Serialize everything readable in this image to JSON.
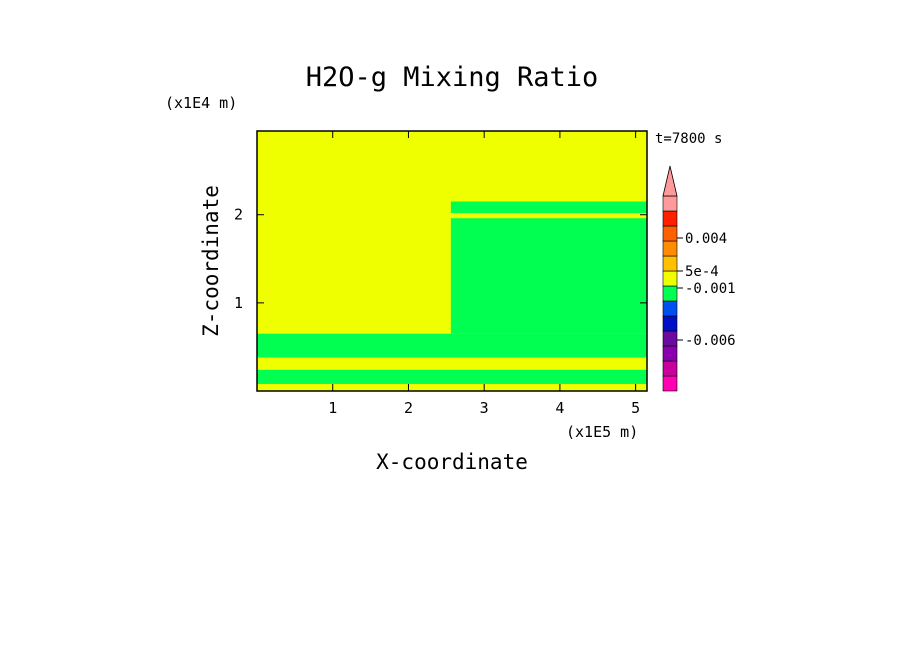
{
  "chart_data": {
    "type": "heatmap",
    "title": "H2O-g Mixing Ratio",
    "xlabel": "X-coordinate",
    "ylabel": "Z-coordinate",
    "x_scale_label": "(x1E5 m)",
    "y_scale_label": "(x1E4 m)",
    "time_label": "t=7800 s",
    "xlim": [
      0,
      5.15
    ],
    "ylim": [
      0,
      2.95
    ],
    "x_ticks": [
      1,
      2,
      3,
      4,
      5
    ],
    "y_ticks": [
      1,
      2
    ],
    "x_tick_labels": [
      "1",
      "2",
      "3",
      "4",
      "5"
    ],
    "y_tick_labels": [
      "1",
      "2"
    ],
    "colorbar": {
      "colors": [
        "#ff00b4",
        "#c8009c",
        "#8a00b0",
        "#6a0a9e",
        "#0010c8",
        "#0050f0",
        "#00ff50",
        "#f0ff00",
        "#ffc000",
        "#ff8c00",
        "#ff6000",
        "#ff2000",
        "#ff9a9a"
      ],
      "labels": [
        {
          "text": "0.004",
          "level": 0.004
        },
        {
          "text": "5e-4",
          "level": 0.0005
        },
        {
          "text": "-0.001",
          "level": -0.001
        },
        {
          "text": "-0.006",
          "level": -0.006
        }
      ]
    },
    "regions": [
      {
        "x": [
          0,
          5.15
        ],
        "z": [
          0,
          2.95
        ],
        "color": "#f0ff00"
      },
      {
        "x": [
          2.56,
          5.15
        ],
        "z": [
          0.65,
          1.96
        ],
        "color": "#00ff50"
      },
      {
        "x": [
          2.56,
          5.15
        ],
        "z": [
          2.02,
          2.15
        ],
        "color": "#00ff50"
      },
      {
        "x": [
          0,
          5.15
        ],
        "z": [
          0.38,
          0.65
        ],
        "color": "#00ff50"
      },
      {
        "x": [
          0,
          5.15
        ],
        "z": [
          0.08,
          0.24
        ],
        "color": "#00ff50"
      }
    ]
  }
}
